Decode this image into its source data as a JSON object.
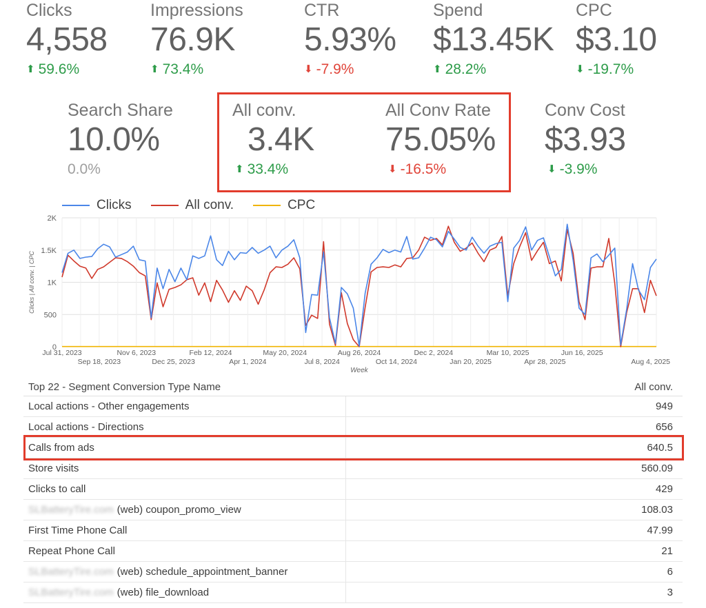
{
  "kpis_top": [
    {
      "label": "Clicks",
      "value": "4,558",
      "delta": "59.6%",
      "direction": "up"
    },
    {
      "label": "Impressions",
      "value": "76.9K",
      "delta": "73.4%",
      "direction": "up"
    },
    {
      "label": "CTR",
      "value": "5.93%",
      "delta": "-7.9%",
      "direction": "down"
    },
    {
      "label": "Spend",
      "value": "$13.45K",
      "delta": "28.2%",
      "direction": "up"
    },
    {
      "label": "CPC",
      "value": "$3.10",
      "delta": "-19.7%",
      "direction": "down-good"
    }
  ],
  "kpis_second": [
    {
      "label": "Search Share",
      "value": "10.0%",
      "delta": "0.0%",
      "direction": "neutral"
    },
    {
      "label": "All conv.",
      "value": "3.4K",
      "delta": "33.4%",
      "direction": "up"
    },
    {
      "label": "All Conv Rate",
      "value": "75.05%",
      "delta": "-16.5%",
      "direction": "down"
    },
    {
      "label": "Conv Cost",
      "value": "$3.93",
      "delta": "-3.9%",
      "direction": "down-good"
    }
  ],
  "colors": {
    "good": "#2e9c4a",
    "bad": "#e0453a",
    "clicks": "#4a86e8",
    "all_conv": "#d0392b",
    "cpc": "#f0b400",
    "highlight": "#e23c2c"
  },
  "chart_data": {
    "type": "line",
    "xlabel": "Week",
    "ylabel": "Clicks | All conv. | CPC",
    "ylim": [
      0,
      2000
    ],
    "yticks": [
      "0",
      "500",
      "1K",
      "1.5K",
      "2K"
    ],
    "x_ticks_upper": [
      "Jul 31, 2023",
      "Nov 6, 2023",
      "Feb 12, 2024",
      "May 20, 2024",
      "Aug 26, 2024",
      "Dec 2, 2024",
      "Mar 10, 2025",
      "Jun 16, 2025"
    ],
    "x_ticks_lower": [
      "Sep 18, 2023",
      "Dec 25, 2023",
      "Apr 1, 2024",
      "Jul 8, 2024",
      "Oct 14, 2024",
      "Jan 20, 2025",
      "Apr 28, 2025",
      "Aug 4, 2025"
    ],
    "legend_position": "top-left",
    "grid": true,
    "series": [
      {
        "name": "Clicks",
        "values": [
          1150,
          1450,
          1500,
          1370,
          1390,
          1400,
          1520,
          1590,
          1550,
          1390,
          1430,
          1470,
          1560,
          1350,
          1330,
          450,
          1220,
          900,
          1200,
          1010,
          1220,
          1040,
          1410,
          1370,
          1410,
          1720,
          1350,
          1260,
          1480,
          1350,
          1460,
          1450,
          1540,
          1450,
          1500,
          1560,
          1380,
          1500,
          1560,
          1660,
          1380,
          220,
          810,
          800,
          1470,
          450,
          50,
          920,
          820,
          600,
          10,
          830,
          1280,
          1380,
          1510,
          1460,
          1500,
          1470,
          1710,
          1360,
          1380,
          1530,
          1700,
          1660,
          1550,
          1790,
          1670,
          1540,
          1500,
          1700,
          1560,
          1450,
          1560,
          1600,
          1620,
          700,
          1530,
          1650,
          1860,
          1500,
          1650,
          1690,
          1400,
          1100,
          1200,
          1900,
          1340,
          600,
          500,
          1380,
          1440,
          1320,
          1420,
          1530,
          30,
          580,
          1290,
          880,
          730,
          1230,
          1360
        ]
      },
      {
        "name": "All conv.",
        "values": [
          1080,
          1420,
          1330,
          1250,
          1220,
          1060,
          1200,
          1240,
          1310,
          1380,
          1370,
          1320,
          1250,
          1150,
          1100,
          420,
          990,
          620,
          890,
          920,
          960,
          1040,
          1070,
          800,
          990,
          700,
          1030,
          880,
          690,
          870,
          720,
          940,
          870,
          660,
          880,
          1150,
          1240,
          1230,
          1280,
          1380,
          1210,
          330,
          490,
          440,
          1630,
          350,
          20,
          840,
          360,
          110,
          0,
          610,
          1160,
          1230,
          1240,
          1230,
          1270,
          1240,
          1370,
          1380,
          1500,
          1700,
          1650,
          1680,
          1580,
          1870,
          1620,
          1480,
          1530,
          1610,
          1450,
          1320,
          1500,
          1540,
          1710,
          790,
          1290,
          1550,
          1770,
          1340,
          1490,
          1620,
          1290,
          1330,
          1020,
          1820,
          1450,
          700,
          420,
          1220,
          1240,
          1240,
          1680,
          980,
          0,
          530,
          900,
          900,
          530,
          1030,
          790
        ]
      },
      {
        "name": "CPC",
        "values": [
          3,
          3,
          3,
          3,
          3,
          3,
          3,
          3,
          3,
          3,
          3,
          3,
          3,
          3,
          3,
          3,
          3,
          3,
          3,
          3,
          3,
          3,
          3,
          3,
          3,
          3,
          3,
          3,
          3,
          3,
          3,
          3,
          3,
          3,
          3,
          3,
          3,
          3,
          3,
          3,
          3,
          3,
          3,
          3,
          3,
          3,
          3,
          3,
          3,
          3,
          3,
          3,
          3,
          3,
          3,
          3,
          3,
          3,
          3,
          3,
          3,
          3,
          3,
          3,
          3,
          3,
          3,
          3,
          3,
          3,
          3,
          3,
          3,
          3,
          3,
          3,
          3,
          3,
          3,
          3,
          3,
          3,
          3,
          3,
          3,
          3,
          3,
          3,
          3,
          3,
          3,
          3,
          3,
          3,
          3,
          3,
          3,
          3,
          3,
          3,
          3
        ]
      }
    ]
  },
  "table": {
    "title": "Top 22 - Segment Conversion Type Name",
    "value_header": "All conv.",
    "rows": [
      {
        "domain": "",
        "name": "Local actions - Other engagements",
        "value": "949"
      },
      {
        "domain": "",
        "name": "Local actions - Directions",
        "value": "656"
      },
      {
        "domain": "",
        "name": "Calls from ads",
        "value": "640.5"
      },
      {
        "domain": "",
        "name": "Store visits",
        "value": "560.09"
      },
      {
        "domain": "",
        "name": "Clicks to call",
        "value": "429"
      },
      {
        "domain": "SLBatteryTire.com",
        "name": "(web) coupon_promo_view",
        "value": "108.03"
      },
      {
        "domain": "",
        "name": "First Time Phone Call",
        "value": "47.99"
      },
      {
        "domain": "",
        "name": "Repeat Phone Call",
        "value": "21"
      },
      {
        "domain": "SLBatteryTire.com",
        "name": "(web) schedule_appointment_banner",
        "value": "6"
      },
      {
        "domain": "SLBatteryTire.com",
        "name": "(web) file_download",
        "value": "3"
      }
    ]
  }
}
